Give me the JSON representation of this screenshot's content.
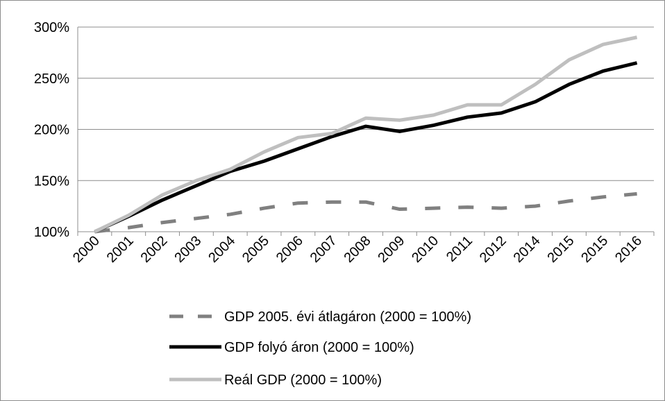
{
  "chart_data": {
    "type": "line",
    "categories": [
      "2000",
      "2001",
      "2002",
      "2003",
      "2004",
      "2005",
      "2006",
      "2007",
      "2008",
      "2009",
      "2010",
      "2011",
      "2012",
      "2014",
      "2015",
      "2015",
      "2016"
    ],
    "y_tick_labels": [
      "100%",
      "150%",
      "200%",
      "250%",
      "300%"
    ],
    "ylim": [
      100,
      300
    ],
    "grid": true,
    "legend_position": "bottom",
    "series": [
      {
        "name": "GDP 2005. évi átlagáron (2000 = 100%)",
        "color": "#808080",
        "style": "dashed",
        "values": [
          100,
          104,
          109,
          113,
          117,
          123,
          128,
          129,
          129,
          122,
          123,
          124,
          123,
          125,
          130,
          134,
          137
        ]
      },
      {
        "name": "GDP folyó áron (2000 = 100%)",
        "color": "#000000",
        "style": "solid",
        "values": [
          100,
          115,
          131,
          145,
          159,
          169,
          181,
          193,
          203,
          198,
          204,
          212,
          216,
          227,
          244,
          257,
          265
        ]
      },
      {
        "name": "Reál GDP (2000 = 100%)",
        "color": "#bfbfbf",
        "style": "solid",
        "values": [
          100,
          116,
          136,
          150,
          161,
          178,
          192,
          196,
          211,
          209,
          214,
          224,
          224,
          244,
          268,
          283,
          290
        ]
      }
    ]
  }
}
